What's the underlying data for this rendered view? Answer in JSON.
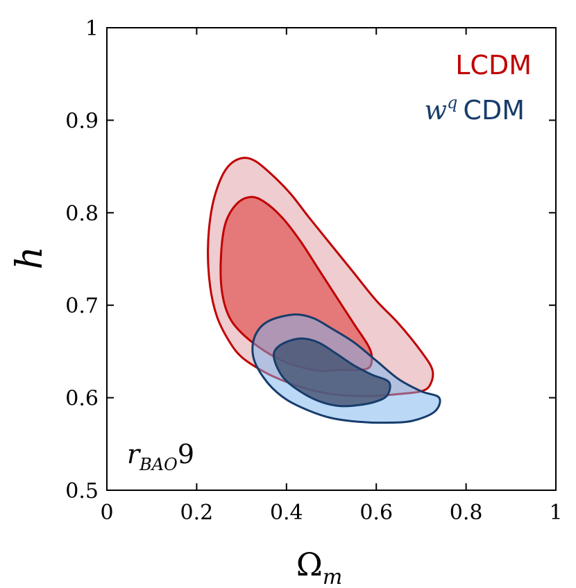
{
  "chart_data": {
    "type": "contour",
    "title": "",
    "xlabel": {
      "base": "Ω",
      "sub": "m"
    },
    "ylabel": "h",
    "xlim": [
      0,
      1
    ],
    "ylim": [
      0.5,
      1
    ],
    "x_ticks": [
      0,
      0.2,
      0.4,
      0.6,
      0.8,
      1
    ],
    "x_tick_labels": [
      "0",
      "0.2",
      "0.4",
      "0.6",
      "0.8",
      "1"
    ],
    "y_ticks": [
      0.5,
      0.6,
      0.7,
      0.8,
      0.9,
      1
    ],
    "y_tick_labels": [
      "0.5",
      "0.6",
      "0.7",
      "0.8",
      "0.9",
      "1"
    ],
    "annotation": {
      "base": "r",
      "sub": "BAO",
      "suffix": "9"
    },
    "legend_position": "top-right",
    "series": [
      {
        "name": "LCDM",
        "name_math": "",
        "name_text": "LCDM",
        "line_color": "#c00000",
        "fill_inner": "#e57878",
        "fill_outer": "#eecccf",
        "contours": [
          {
            "level": "95%",
            "points": [
              [
                0.3,
                0.859
              ],
              [
                0.33,
                0.856
              ],
              [
                0.37,
                0.84
              ],
              [
                0.41,
                0.82
              ],
              [
                0.45,
                0.795
              ],
              [
                0.5,
                0.765
              ],
              [
                0.55,
                0.735
              ],
              [
                0.6,
                0.705
              ],
              [
                0.65,
                0.68
              ],
              [
                0.7,
                0.65
              ],
              [
                0.725,
                0.63
              ],
              [
                0.72,
                0.614
              ],
              [
                0.7,
                0.607
              ],
              [
                0.65,
                0.604
              ],
              [
                0.6,
                0.602
              ],
              [
                0.55,
                0.602
              ],
              [
                0.5,
                0.604
              ],
              [
                0.45,
                0.609
              ],
              [
                0.4,
                0.617
              ],
              [
                0.35,
                0.628
              ],
              [
                0.3,
                0.644
              ],
              [
                0.27,
                0.663
              ],
              [
                0.245,
                0.688
              ],
              [
                0.23,
                0.72
              ],
              [
                0.225,
                0.76
              ],
              [
                0.232,
                0.8
              ],
              [
                0.248,
                0.83
              ],
              [
                0.27,
                0.85
              ]
            ]
          },
          {
            "level": "68%",
            "points": [
              [
                0.32,
                0.817
              ],
              [
                0.35,
                0.812
              ],
              [
                0.39,
                0.795
              ],
              [
                0.43,
                0.77
              ],
              [
                0.47,
                0.74
              ],
              [
                0.51,
                0.71
              ],
              [
                0.55,
                0.68
              ],
              [
                0.58,
                0.658
              ],
              [
                0.59,
                0.645
              ],
              [
                0.585,
                0.633
              ],
              [
                0.56,
                0.63
              ],
              [
                0.52,
                0.63
              ],
              [
                0.48,
                0.629
              ],
              [
                0.45,
                0.631
              ],
              [
                0.4,
                0.638
              ],
              [
                0.35,
                0.651
              ],
              [
                0.3,
                0.67
              ],
              [
                0.27,
                0.69
              ],
              [
                0.255,
                0.72
              ],
              [
                0.255,
                0.76
              ],
              [
                0.265,
                0.79
              ],
              [
                0.29,
                0.81
              ]
            ]
          }
        ]
      },
      {
        "name": "wq CDM",
        "name_math": "w",
        "name_sup": "q",
        "name_text": "CDM",
        "line_color": "#173d6b",
        "fill_inner": "#4a5878",
        "fill_outer_alpha": "rgba(120,180,240,0.50)",
        "contours": [
          {
            "level": "95%",
            "points": [
              [
                0.42,
                0.69
              ],
              [
                0.46,
                0.686
              ],
              [
                0.5,
                0.675
              ],
              [
                0.55,
                0.66
              ],
              [
                0.6,
                0.64
              ],
              [
                0.65,
                0.62
              ],
              [
                0.7,
                0.607
              ],
              [
                0.74,
                0.6
              ],
              [
                0.73,
                0.585
              ],
              [
                0.68,
                0.575
              ],
              [
                0.62,
                0.573
              ],
              [
                0.56,
                0.574
              ],
              [
                0.5,
                0.578
              ],
              [
                0.45,
                0.586
              ],
              [
                0.4,
                0.598
              ],
              [
                0.36,
                0.615
              ],
              [
                0.33,
                0.638
              ],
              [
                0.325,
                0.658
              ],
              [
                0.34,
                0.675
              ],
              [
                0.37,
                0.685
              ]
            ]
          },
          {
            "level": "68%",
            "points": [
              [
                0.43,
                0.664
              ],
              [
                0.47,
                0.66
              ],
              [
                0.51,
                0.648
              ],
              [
                0.55,
                0.635
              ],
              [
                0.59,
                0.625
              ],
              [
                0.628,
                0.617
              ],
              [
                0.625,
                0.603
              ],
              [
                0.6,
                0.596
              ],
              [
                0.56,
                0.592
              ],
              [
                0.52,
                0.591
              ],
              [
                0.48,
                0.595
              ],
              [
                0.44,
                0.604
              ],
              [
                0.4,
                0.618
              ],
              [
                0.38,
                0.632
              ],
              [
                0.372,
                0.648
              ],
              [
                0.39,
                0.658
              ]
            ]
          }
        ]
      }
    ]
  }
}
